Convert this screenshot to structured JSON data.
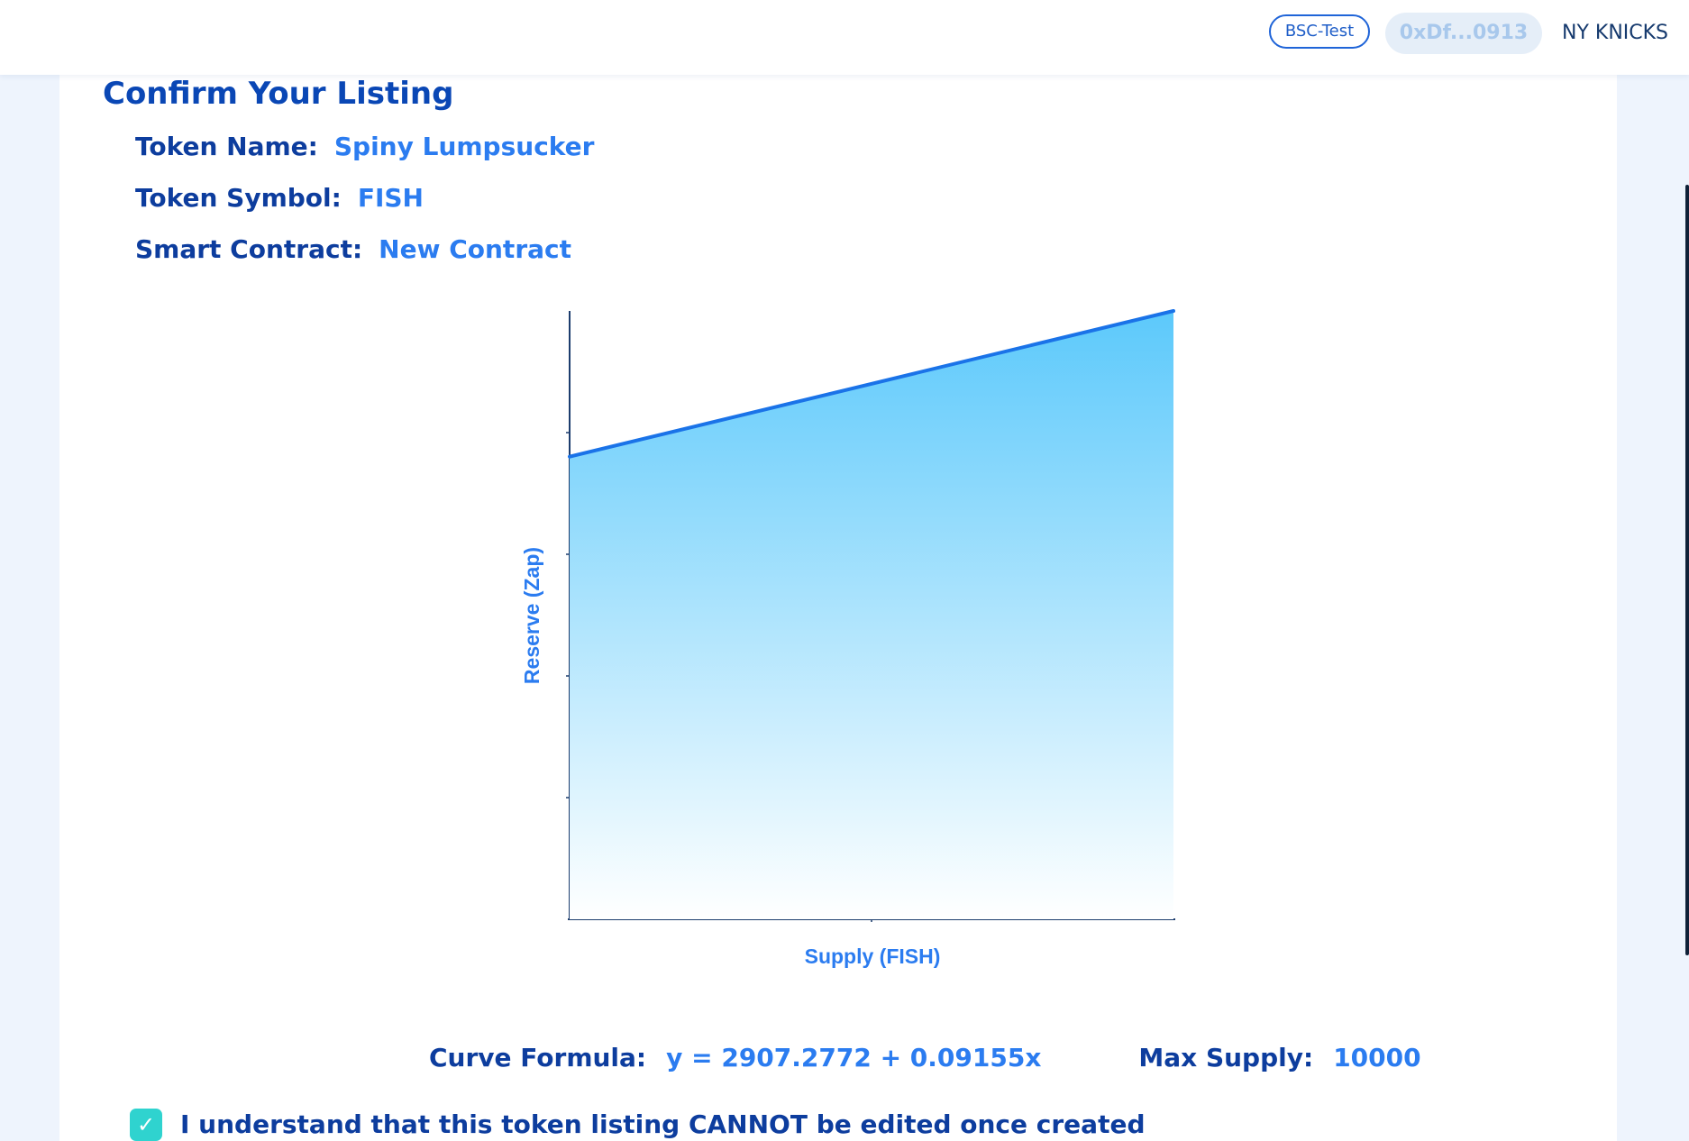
{
  "header": {
    "network_badge": "BSC-Test",
    "wallet_address": "0xDf...0913",
    "user_name": "NY KNICKS"
  },
  "listing": {
    "title": "Confirm Your Listing",
    "fields": [
      {
        "label": "Token Name:",
        "value": "Spiny Lumpsucker"
      },
      {
        "label": "Token Symbol:",
        "value": "FISH"
      },
      {
        "label": "Smart Contract:",
        "value": "New Contract"
      }
    ]
  },
  "chart_data": {
    "type": "area",
    "xlabel": "Supply (FISH)",
    "ylabel": "Reserve (Zap)",
    "formula": {
      "intercept": 2907.2772,
      "slope": 0.09155
    },
    "x": [
      0,
      10000
    ],
    "y": [
      2907.2772,
      3822.7772
    ],
    "xlim": [
      0,
      10000
    ],
    "ylim": [
      0,
      3822.7772
    ],
    "grid": false,
    "legend": "none",
    "colors": {
      "line": "#1a73e8",
      "fill_top": "#5cc9fb",
      "fill_bottom": "#ffffff",
      "axis": "#1d3d6e",
      "label": "#2b7cf0"
    }
  },
  "summary": {
    "curve_formula_label": "Curve Formula:",
    "curve_formula_value": "y = 2907.2772 + 0.09155x",
    "max_supply_label": "Max Supply:",
    "max_supply_value": "10000"
  },
  "confirm": {
    "checked": true,
    "text": "I understand that this token listing CANNOT be edited once created"
  }
}
